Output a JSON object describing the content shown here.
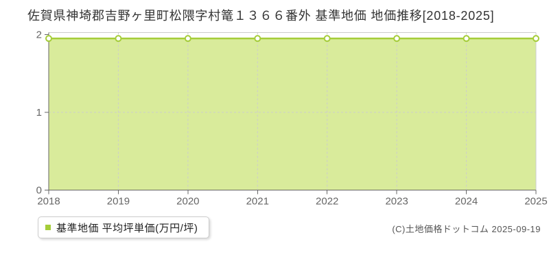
{
  "title": "佐賀県神埼郡吉野ヶ里町松隈字村篭１３６６番外 基準地価 地価推移[2018-2025]",
  "legend": {
    "label": "基準地価 平均坪単価(万円/坪)"
  },
  "footer": {
    "copyright": "(C)土地価格ドットコム 2025-09-19"
  },
  "colors": {
    "line": "#a5cd39",
    "fill": "#d9eb9b",
    "marker_fill": "#ffffff",
    "grid": "#cccccc",
    "frame": "#cccccc",
    "axis": "#666666",
    "tick_text": "#666666",
    "title_text": "#333333",
    "copyright_text": "#555555"
  },
  "chart_data": {
    "type": "area",
    "title": "佐賀県神埼郡吉野ヶ里町松隈字村篭１３６６番外 基準地価 地価推移[2018-2025]",
    "categories": [
      2018,
      2019,
      2020,
      2021,
      2022,
      2023,
      2024,
      2025
    ],
    "series": [
      {
        "name": "基準地価 平均坪単価(万円/坪)",
        "values": [
          1.95,
          1.95,
          1.95,
          1.95,
          1.95,
          1.95,
          1.95,
          1.95
        ]
      }
    ],
    "xlabel": "",
    "ylabel": "",
    "ylim": [
      0,
      2
    ],
    "yticks": [
      0,
      1,
      2
    ],
    "grid": true,
    "grid_style": "dashed",
    "legend_position": "bottom-left",
    "marker": "circle"
  }
}
